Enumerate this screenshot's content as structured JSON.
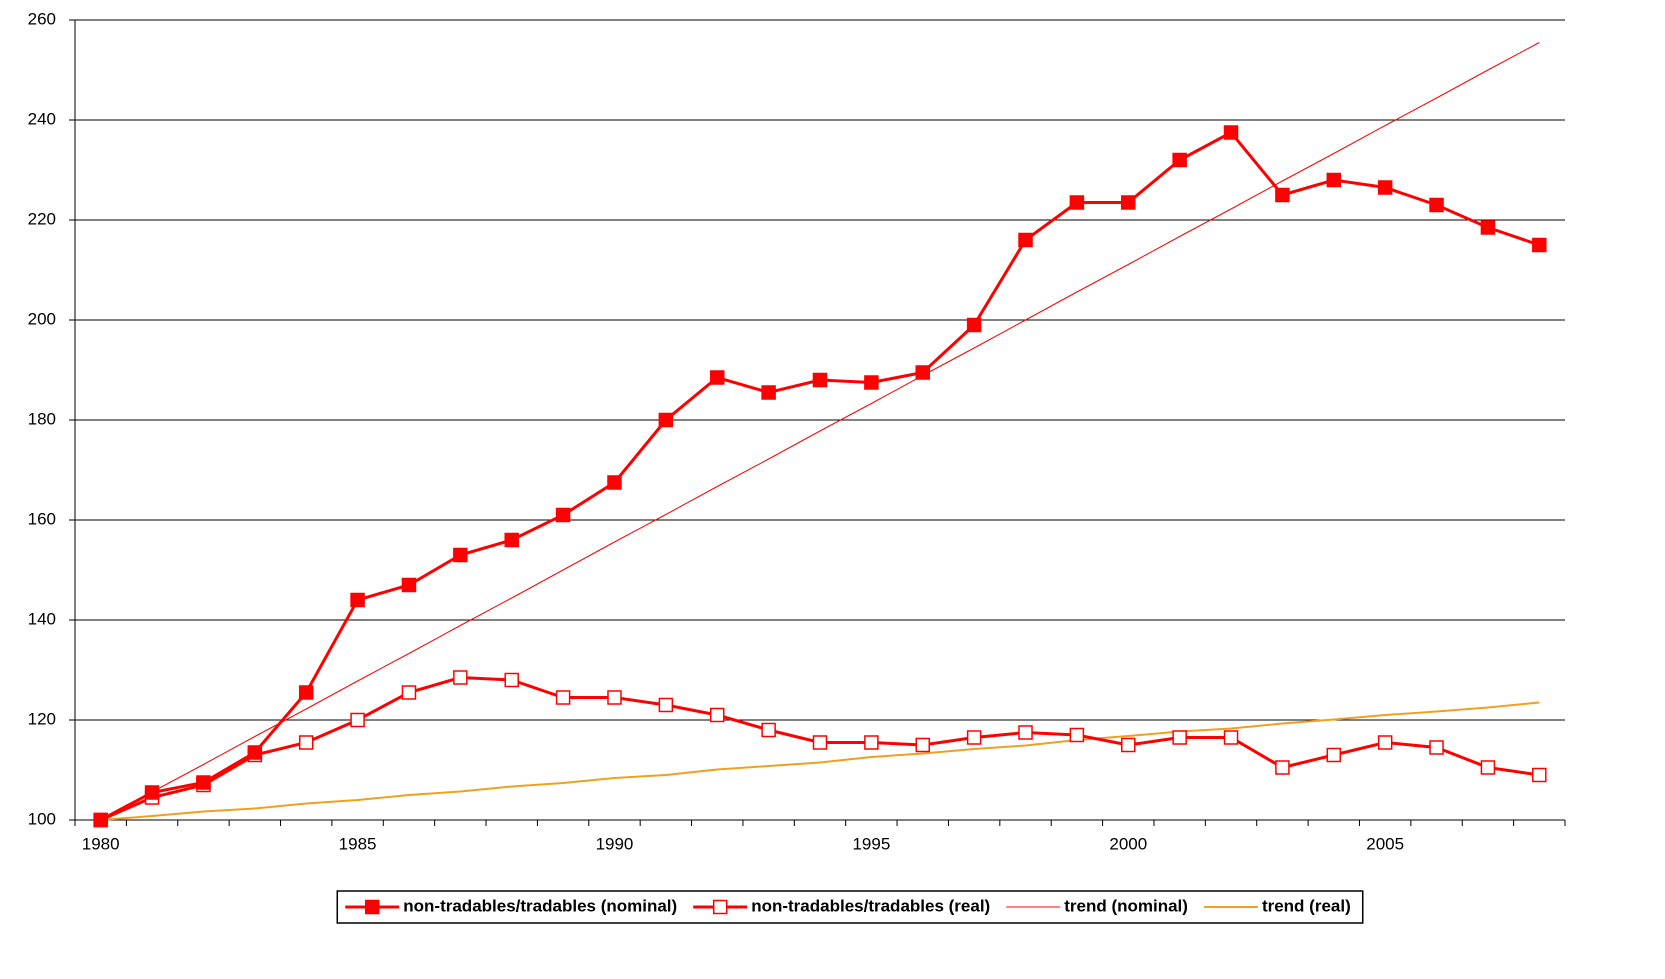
{
  "chart_data": {
    "type": "line",
    "categories": [
      "1980",
      null,
      null,
      null,
      null,
      "1985",
      null,
      null,
      null,
      null,
      "1990",
      null,
      null,
      null,
      null,
      "1995",
      null,
      null,
      null,
      null,
      "2000",
      null,
      null,
      null,
      null,
      "2005",
      null,
      null,
      null
    ],
    "series": [
      {
        "name": "non-tradables/tradables (nominal)",
        "color": "#ff0000",
        "marker": "square-filled",
        "width": 3,
        "values": [
          100,
          105.5,
          107.5,
          113.5,
          125.5,
          144,
          147,
          153,
          156,
          161,
          167.5,
          180,
          188.5,
          185.5,
          188,
          187.5,
          189.5,
          199,
          216,
          223.5,
          223.5,
          232,
          237.5,
          225,
          228,
          226.5,
          223,
          218.5,
          215
        ]
      },
      {
        "name": "non-tradables/tradables (real)",
        "color": "#ff0000",
        "marker": "square-open",
        "width": 3,
        "values": [
          100,
          104.5,
          107,
          113,
          115.5,
          120,
          125.5,
          128.5,
          128,
          124.5,
          124.5,
          123,
          121,
          118,
          115.5,
          115.5,
          115,
          116.5,
          117.5,
          117,
          115,
          116.5,
          116.5,
          110.5,
          113,
          115.5,
          114.5,
          110.5,
          109
        ]
      },
      {
        "name": "trend (nominal)",
        "color": "#ff0000",
        "marker": "none",
        "width": 1,
        "values": [
          100,
          105.6,
          111.1,
          116.7,
          122.2,
          127.8,
          133.3,
          138.9,
          144.4,
          150,
          155.6,
          161.1,
          166.7,
          172.2,
          177.8,
          183.3,
          188.9,
          194.4,
          200,
          205.6,
          211.1,
          216.7,
          222.2,
          227.8,
          233.3,
          238.9,
          244.4,
          250,
          255.5
        ]
      },
      {
        "name": "trend (real)",
        "color": "#f0a020",
        "marker": "none",
        "width": 2,
        "values": [
          100,
          100.8,
          101.7,
          102.3,
          103.3,
          104,
          105,
          105.7,
          106.7,
          107.4,
          108.4,
          109,
          110.1,
          110.8,
          111.5,
          112.6,
          113.3,
          114.2,
          114.9,
          116,
          116.8,
          117.7,
          118.3,
          119.3,
          120.1,
          121,
          121.7,
          122.5,
          123.5
        ]
      }
    ],
    "ylim": [
      100,
      260
    ],
    "yticks": [
      100,
      120,
      140,
      160,
      180,
      200,
      220,
      240,
      260
    ],
    "grid": true,
    "legend": "bottom"
  }
}
